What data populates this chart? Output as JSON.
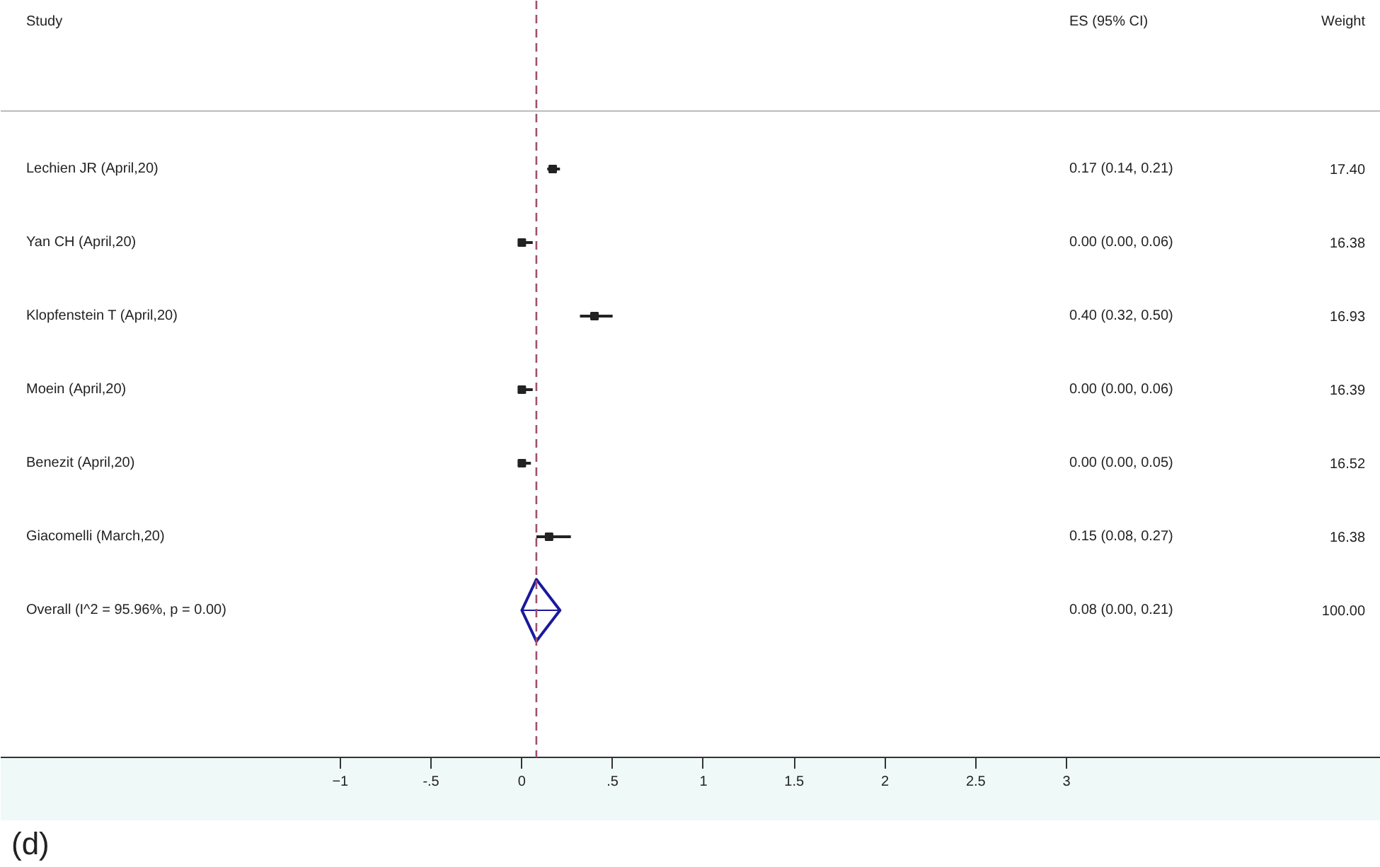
{
  "chart_data": {
    "type": "scatter",
    "orientation": "horizontal",
    "categories": [
      "Lechien JR (April,20)",
      "Yan CH (April,20)",
      "Klopfenstein T (April,20)",
      "Moein (April,20)",
      "Benezit (April,20)",
      "Giacomelli (March,20)",
      "Overall  (I^2 = 95.96%, p = 0.00)"
    ],
    "series": [
      {
        "color": "#222222",
        "marker": "square",
        "values": [
          0.17,
          0.0,
          0.4,
          0.0,
          0.0,
          0.15,
          null
        ],
        "errors": [
          [
            0.14,
            0.21
          ],
          [
            0.0,
            0.06
          ],
          [
            0.32,
            0.5
          ],
          [
            0.0,
            0.06
          ],
          [
            0.0,
            0.05
          ],
          [
            0.08,
            0.27
          ],
          null
        ]
      },
      {
        "color": "#1a1a9c",
        "marker": "diamond",
        "values": [
          null,
          null,
          null,
          null,
          null,
          null,
          0.08
        ],
        "errors": [
          null,
          null,
          null,
          null,
          null,
          null,
          [
            0.0,
            0.21
          ]
        ]
      }
    ],
    "xlim": [
      -2.87,
      4.73
    ],
    "xticks": [
      -1,
      {
        "value": -0.5,
        "label": "-.5"
      },
      0,
      {
        "value": 0.5,
        "label": ".5"
      },
      1,
      1.5,
      2,
      2.5,
      3
    ],
    "ref_lines": [
      {
        "axis": "x",
        "value": 0.08,
        "color": "#a05070",
        "line_style": "dashed"
      }
    ],
    "grid": false,
    "annotations": [
      "Study",
      "ES (95% CI)",
      "Weight",
      "0.17 (0.14, 0.21)",
      "0.00 (0.00, 0.06)",
      "0.40 (0.32, 0.50)",
      "0.00 (0.00, 0.06)",
      "0.00 (0.00, 0.05)",
      "0.15 (0.08, 0.27)",
      "0.08 (0.00, 0.21)",
      "17.40",
      "16.38",
      "16.93",
      "16.39",
      "16.52",
      "16.38",
      "100.00",
      "(d)"
    ]
  }
}
